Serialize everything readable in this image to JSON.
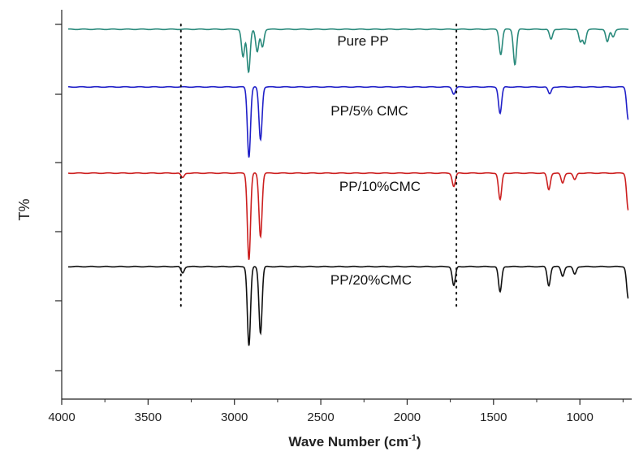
{
  "chart_data": {
    "type": "line",
    "title": "",
    "xlabel": "Wave Number (cm",
    "xlabel_superscript": "-1",
    "xlabel_close": ")",
    "ylabel": "T%",
    "xlim": [
      4000,
      700
    ],
    "x_reversed": true,
    "x_ticks": [
      4000,
      3500,
      3000,
      2500,
      2000,
      1500,
      1000
    ],
    "y_axis_ticks_unlabeled": true,
    "grid": false,
    "reference_lines_x": [
      3310,
      1715
    ],
    "reference_line_style": "dotted",
    "series": [
      {
        "name": "Pure PP",
        "color": "#2a8a7c",
        "peaks": [
          {
            "x": 2950,
            "depth": 0.55
          },
          {
            "x": 2918,
            "depth": 0.85
          },
          {
            "x": 2868,
            "depth": 0.45
          },
          {
            "x": 2838,
            "depth": 0.35
          },
          {
            "x": 1458,
            "depth": 0.5
          },
          {
            "x": 1376,
            "depth": 0.7
          },
          {
            "x": 1167,
            "depth": 0.2
          },
          {
            "x": 997,
            "depth": 0.25
          },
          {
            "x": 973,
            "depth": 0.28
          },
          {
            "x": 841,
            "depth": 0.25
          },
          {
            "x": 808,
            "depth": 0.15
          }
        ]
      },
      {
        "name": "PP/5% CMC",
        "color": "#2020c8",
        "peaks": [
          {
            "x": 2916,
            "depth": 1.2
          },
          {
            "x": 2849,
            "depth": 0.9
          },
          {
            "x": 1730,
            "depth": 0.12
          },
          {
            "x": 1462,
            "depth": 0.45
          },
          {
            "x": 1175,
            "depth": 0.12
          },
          {
            "x": 720,
            "depth": 0.55
          }
        ]
      },
      {
        "name": "PP/10%CMC",
        "color": "#cc1f1f",
        "peaks": [
          {
            "x": 3300,
            "depth": 0.07
          },
          {
            "x": 2916,
            "depth": 1.3
          },
          {
            "x": 2849,
            "depth": 0.95
          },
          {
            "x": 1730,
            "depth": 0.2
          },
          {
            "x": 1462,
            "depth": 0.4
          },
          {
            "x": 1180,
            "depth": 0.25
          },
          {
            "x": 1100,
            "depth": 0.15
          },
          {
            "x": 1030,
            "depth": 0.1
          },
          {
            "x": 720,
            "depth": 0.55
          }
        ]
      },
      {
        "name": "PP/20%CMC",
        "color": "#111111",
        "peaks": [
          {
            "x": 3300,
            "depth": 0.1
          },
          {
            "x": 2916,
            "depth": 1.25
          },
          {
            "x": 2849,
            "depth": 1.05
          },
          {
            "x": 1730,
            "depth": 0.3
          },
          {
            "x": 1462,
            "depth": 0.4
          },
          {
            "x": 1180,
            "depth": 0.3
          },
          {
            "x": 1100,
            "depth": 0.15
          },
          {
            "x": 1030,
            "depth": 0.12
          },
          {
            "x": 720,
            "depth": 0.5
          }
        ]
      }
    ]
  }
}
